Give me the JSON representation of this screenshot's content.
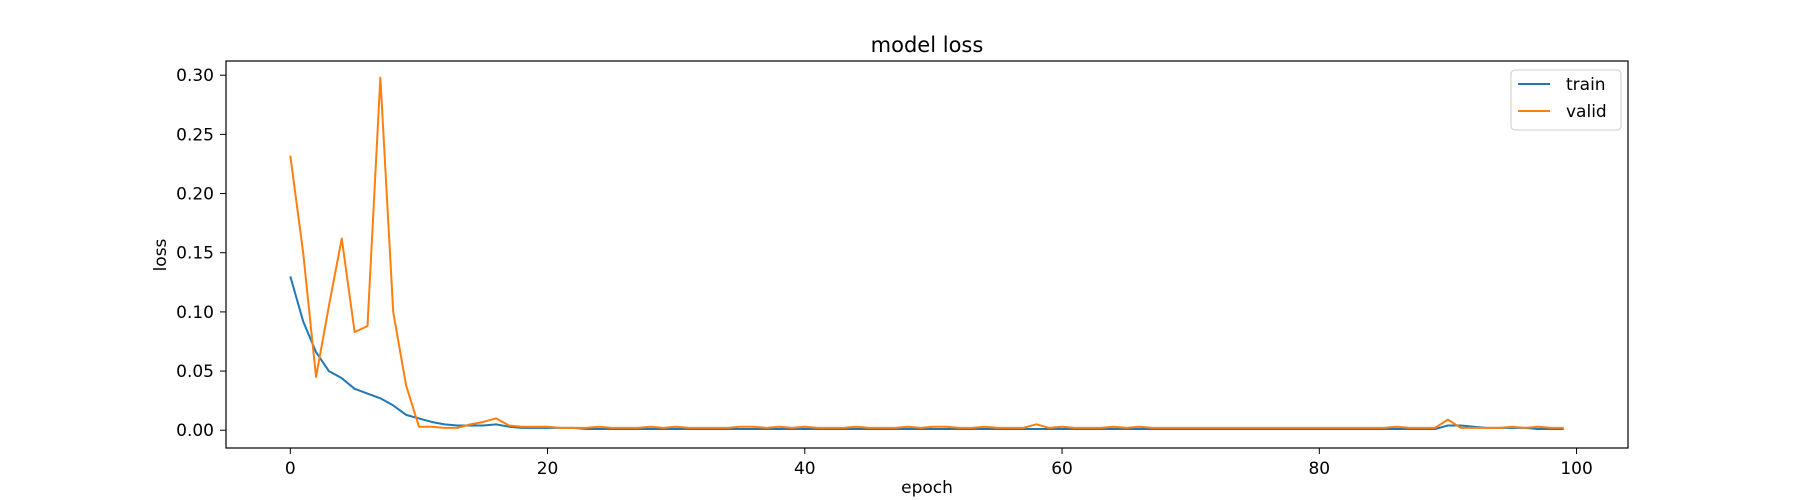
{
  "chart_data": {
    "type": "line",
    "title": "model loss",
    "xlabel": "epoch",
    "ylabel": "loss",
    "xlim": [
      -5,
      104
    ],
    "ylim": [
      -0.015,
      0.312
    ],
    "xticks": [
      0,
      20,
      40,
      60,
      80,
      100
    ],
    "xtick_labels": [
      "0",
      "20",
      "40",
      "60",
      "80",
      "100"
    ],
    "yticks": [
      0.0,
      0.05,
      0.1,
      0.15,
      0.2,
      0.25,
      0.3
    ],
    "ytick_labels": [
      "0.00",
      "0.05",
      "0.10",
      "0.15",
      "0.20",
      "0.25",
      "0.30"
    ],
    "grid": false,
    "legend_position": "top-right",
    "x": [
      0,
      1,
      2,
      3,
      4,
      5,
      6,
      7,
      8,
      9,
      10,
      11,
      12,
      13,
      14,
      15,
      16,
      17,
      18,
      19,
      20,
      21,
      22,
      23,
      24,
      25,
      26,
      27,
      28,
      29,
      30,
      31,
      32,
      33,
      34,
      35,
      36,
      37,
      38,
      39,
      40,
      41,
      42,
      43,
      44,
      45,
      46,
      47,
      48,
      49,
      50,
      51,
      52,
      53,
      54,
      55,
      56,
      57,
      58,
      59,
      60,
      61,
      62,
      63,
      64,
      65,
      66,
      67,
      68,
      69,
      70,
      71,
      72,
      73,
      74,
      75,
      76,
      77,
      78,
      79,
      80,
      81,
      82,
      83,
      84,
      85,
      86,
      87,
      88,
      89,
      90,
      91,
      92,
      93,
      94,
      95,
      96,
      97,
      98,
      99
    ],
    "series": [
      {
        "name": "train",
        "color": "#1f77b4",
        "values": [
          0.13,
          0.092,
          0.066,
          0.05,
          0.044,
          0.035,
          0.031,
          0.027,
          0.021,
          0.013,
          0.01,
          0.007,
          0.005,
          0.004,
          0.004,
          0.004,
          0.005,
          0.003,
          0.002,
          0.002,
          0.002,
          0.002,
          0.002,
          0.001,
          0.001,
          0.001,
          0.001,
          0.001,
          0.001,
          0.001,
          0.001,
          0.001,
          0.001,
          0.001,
          0.001,
          0.001,
          0.001,
          0.001,
          0.001,
          0.001,
          0.001,
          0.001,
          0.001,
          0.001,
          0.001,
          0.001,
          0.001,
          0.001,
          0.001,
          0.001,
          0.001,
          0.001,
          0.001,
          0.001,
          0.001,
          0.001,
          0.001,
          0.001,
          0.001,
          0.001,
          0.001,
          0.001,
          0.001,
          0.001,
          0.001,
          0.001,
          0.001,
          0.001,
          0.001,
          0.001,
          0.001,
          0.001,
          0.001,
          0.001,
          0.001,
          0.001,
          0.001,
          0.001,
          0.001,
          0.001,
          0.001,
          0.001,
          0.001,
          0.001,
          0.001,
          0.001,
          0.001,
          0.001,
          0.001,
          0.001,
          0.004,
          0.004,
          0.003,
          0.002,
          0.002,
          0.002,
          0.002,
          0.001,
          0.001,
          0.001
        ]
      },
      {
        "name": "valid",
        "color": "#ff7f0e",
        "values": [
          0.232,
          0.15,
          0.045,
          0.105,
          0.162,
          0.083,
          0.088,
          0.298,
          0.1,
          0.038,
          0.003,
          0.003,
          0.002,
          0.002,
          0.005,
          0.007,
          0.01,
          0.004,
          0.003,
          0.003,
          0.003,
          0.002,
          0.002,
          0.002,
          0.003,
          0.002,
          0.002,
          0.002,
          0.003,
          0.002,
          0.003,
          0.002,
          0.002,
          0.002,
          0.002,
          0.003,
          0.003,
          0.002,
          0.003,
          0.002,
          0.003,
          0.002,
          0.002,
          0.002,
          0.003,
          0.002,
          0.002,
          0.002,
          0.003,
          0.002,
          0.003,
          0.003,
          0.002,
          0.002,
          0.003,
          0.002,
          0.002,
          0.002,
          0.005,
          0.002,
          0.003,
          0.002,
          0.002,
          0.002,
          0.003,
          0.002,
          0.003,
          0.002,
          0.002,
          0.002,
          0.002,
          0.002,
          0.002,
          0.002,
          0.002,
          0.002,
          0.002,
          0.002,
          0.002,
          0.002,
          0.002,
          0.002,
          0.002,
          0.002,
          0.002,
          0.002,
          0.003,
          0.002,
          0.002,
          0.002,
          0.009,
          0.002,
          0.002,
          0.002,
          0.002,
          0.003,
          0.002,
          0.003,
          0.002,
          0.002
        ]
      }
    ]
  }
}
